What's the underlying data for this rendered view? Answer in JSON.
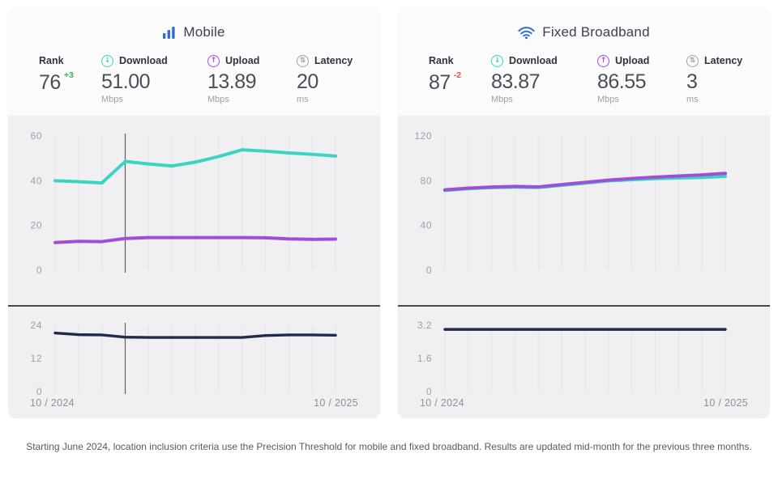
{
  "colors": {
    "brand_blue": "#2f6cd4",
    "download_teal": "#3bd4c0",
    "upload_purple": "#9e4fd6",
    "latency_navy": "#1f2b49",
    "rank_up_green": "#3fae52",
    "rank_down_red": "#e8505b",
    "chart_bg": "#f0f0f2",
    "card_bg": "#fbfbfc"
  },
  "icons": {
    "download_glyph": "↓",
    "upload_glyph": "↑",
    "latency_glyph": "⇅"
  },
  "panels": [
    {
      "id": "mobile",
      "title": "Mobile",
      "stats": {
        "rank": {
          "label": "Rank",
          "value": "76",
          "delta": "+3"
        },
        "download": {
          "label": "Download",
          "value": "51.00",
          "unit": "Mbps"
        },
        "upload": {
          "label": "Upload",
          "value": "13.89",
          "unit": "Mbps"
        },
        "latency": {
          "label": "Latency",
          "value": "20",
          "unit": "ms"
        }
      },
      "x_start_label": "10 / 2024",
      "x_end_label": "10 / 2025"
    },
    {
      "id": "fixed",
      "title": "Fixed Broadband",
      "stats": {
        "rank": {
          "label": "Rank",
          "value": "87",
          "delta": "-2"
        },
        "download": {
          "label": "Download",
          "value": "83.87",
          "unit": "Mbps"
        },
        "upload": {
          "label": "Upload",
          "value": "86.55",
          "unit": "Mbps"
        },
        "latency": {
          "label": "Latency",
          "value": "3",
          "unit": "ms"
        }
      },
      "x_start_label": "10 / 2024",
      "x_end_label": "10 / 2025"
    }
  ],
  "footer": {
    "note": "Starting June 2024, location inclusion criteria use the Precision Threshold for mobile and fixed broadband. Results are updated mid-month for the previous three months."
  },
  "chart_data": [
    {
      "id": "mobile-speed",
      "type": "line",
      "x": [
        "10/2024",
        "11/2024",
        "12/2024",
        "01/2025",
        "02/2025",
        "03/2025",
        "04/2025",
        "05/2025",
        "06/2025",
        "07/2025",
        "08/2025",
        "09/2025",
        "10/2025"
      ],
      "series": [
        {
          "name": "Download (Mbps)",
          "color": "#3bd4c0",
          "width": 4,
          "values": [
            40,
            39.6,
            39,
            48.6,
            47.5,
            46.6,
            48.3,
            50.8,
            53.8,
            53.2,
            52.4,
            51.8,
            51
          ]
        },
        {
          "name": "Upload (Mbps)",
          "color": "#9e4fd6",
          "width": 4,
          "values": [
            12.4,
            12.9,
            12.8,
            14.2,
            14.6,
            14.6,
            14.6,
            14.6,
            14.6,
            14.5,
            14,
            13.8,
            13.9
          ]
        }
      ],
      "ylim": [
        0,
        60
      ],
      "yticks": [
        0,
        20,
        40,
        60
      ],
      "marker_index": 3,
      "grid": "vertical-only",
      "legend": "none"
    },
    {
      "id": "mobile-latency",
      "type": "line",
      "x": [
        "10/2024",
        "11/2024",
        "12/2024",
        "01/2025",
        "02/2025",
        "03/2025",
        "04/2025",
        "05/2025",
        "06/2025",
        "07/2025",
        "08/2025",
        "09/2025",
        "10/2025"
      ],
      "series": [
        {
          "name": "Latency (ms)",
          "color": "#1f2b49",
          "width": 3.4,
          "values": [
            21.2,
            20.6,
            20.5,
            19.7,
            19.6,
            19.6,
            19.6,
            19.6,
            19.6,
            20.3,
            20.5,
            20.5,
            20.4
          ]
        }
      ],
      "ylim": [
        0,
        24
      ],
      "yticks": [
        0,
        12,
        24
      ],
      "marker_index": 3,
      "grid": "vertical-only",
      "legend": "none",
      "xlabels_shown": [
        "10 / 2024",
        "10 / 2025"
      ]
    },
    {
      "id": "fixed-speed",
      "type": "line",
      "x": [
        "10/2024",
        "11/2024",
        "12/2024",
        "01/2025",
        "02/2025",
        "03/2025",
        "04/2025",
        "05/2025",
        "06/2025",
        "07/2025",
        "08/2025",
        "09/2025",
        "10/2025"
      ],
      "series": [
        {
          "name": "Download (Mbps)",
          "color": "#3bd4c0",
          "width": 4,
          "values": [
            71.3,
            72.9,
            73.8,
            74.3,
            73.9,
            75.9,
            77.8,
            79.9,
            80.9,
            81.9,
            82.4,
            82.9,
            83.9
          ]
        },
        {
          "name": "Upload (Mbps)",
          "color": "#9e4fd6",
          "width": 4,
          "values": [
            71.8,
            73.4,
            74.4,
            74.9,
            74.5,
            76.5,
            78.5,
            80.5,
            82,
            83.2,
            84.2,
            85.2,
            86.6
          ]
        }
      ],
      "ylim": [
        0,
        120
      ],
      "yticks": [
        0,
        40,
        80,
        120
      ],
      "marker_index": null,
      "grid": "vertical-only",
      "legend": "none"
    },
    {
      "id": "fixed-latency",
      "type": "line",
      "x": [
        "10/2024",
        "11/2024",
        "12/2024",
        "01/2025",
        "02/2025",
        "03/2025",
        "04/2025",
        "05/2025",
        "06/2025",
        "07/2025",
        "08/2025",
        "09/2025",
        "10/2025"
      ],
      "series": [
        {
          "name": "Latency (ms)",
          "color": "#1f2b49",
          "width": 3.4,
          "values": [
            3,
            3,
            3,
            3,
            3,
            3,
            3,
            3,
            3,
            3,
            3,
            3,
            3
          ]
        }
      ],
      "ylim": [
        0,
        3.2
      ],
      "yticks": [
        0,
        1.6,
        3.2
      ],
      "marker_index": null,
      "grid": "vertical-only",
      "legend": "none",
      "xlabels_shown": [
        "10 / 2024",
        "10 / 2025"
      ]
    }
  ]
}
